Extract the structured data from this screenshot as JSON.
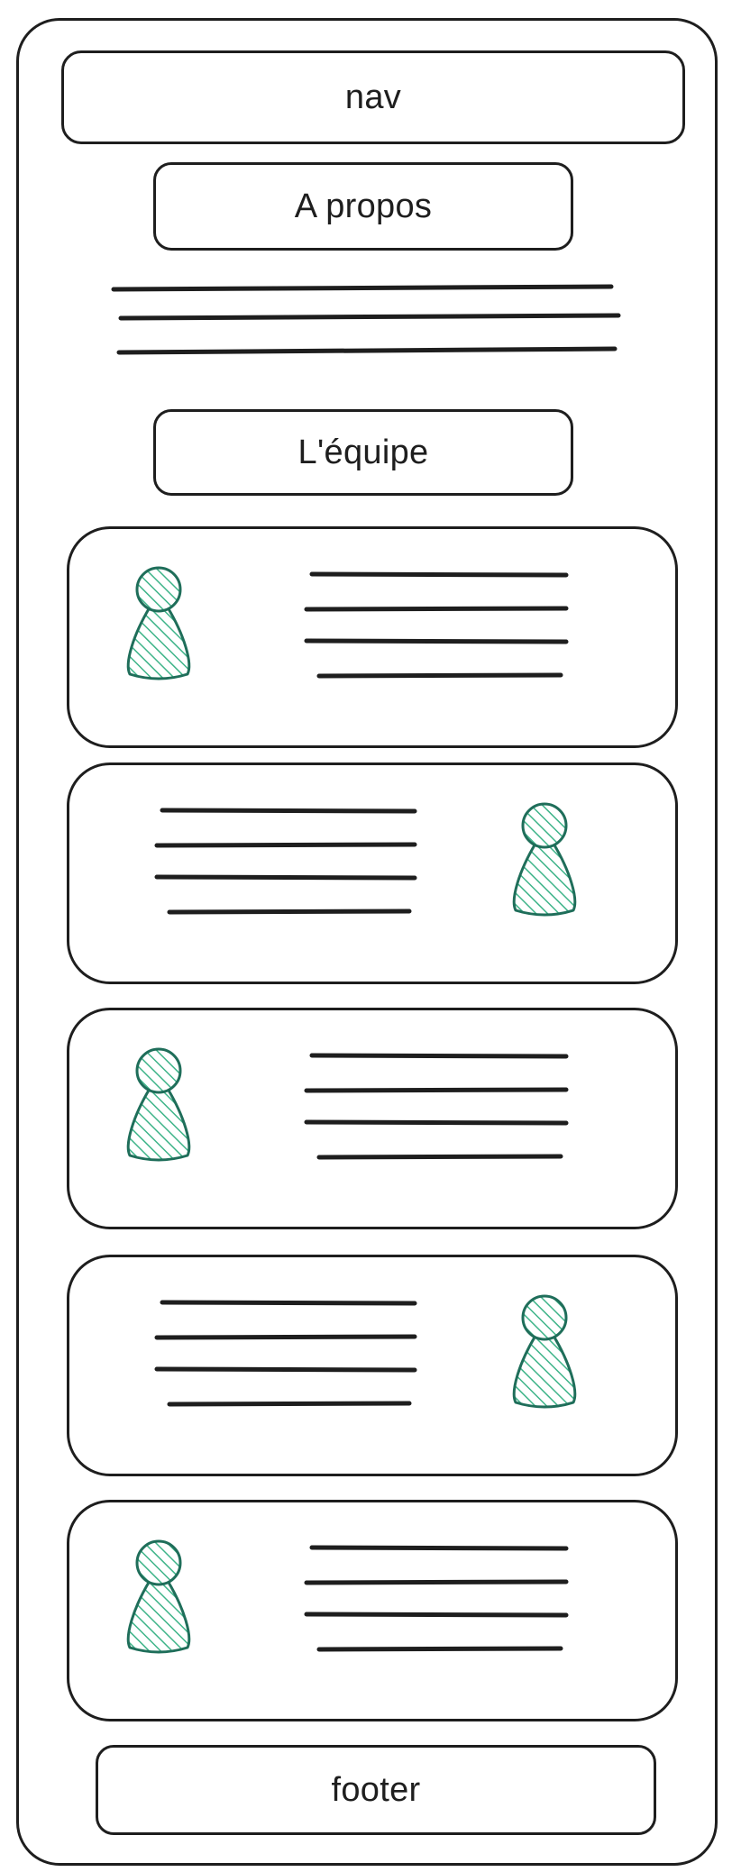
{
  "nav": {
    "label": "nav"
  },
  "about": {
    "title": "A propos"
  },
  "team": {
    "title": "L'équipe",
    "members": [
      {
        "avatar_side": "left"
      },
      {
        "avatar_side": "right"
      },
      {
        "avatar_side": "left"
      },
      {
        "avatar_side": "right"
      },
      {
        "avatar_side": "left"
      }
    ]
  },
  "footer": {
    "label": "footer"
  },
  "colors": {
    "stroke": "#1e1e1e",
    "avatar_fill": "#3eb489",
    "avatar_outline": "#1f6e5a"
  },
  "icons": {
    "member_avatar": "person-icon"
  }
}
